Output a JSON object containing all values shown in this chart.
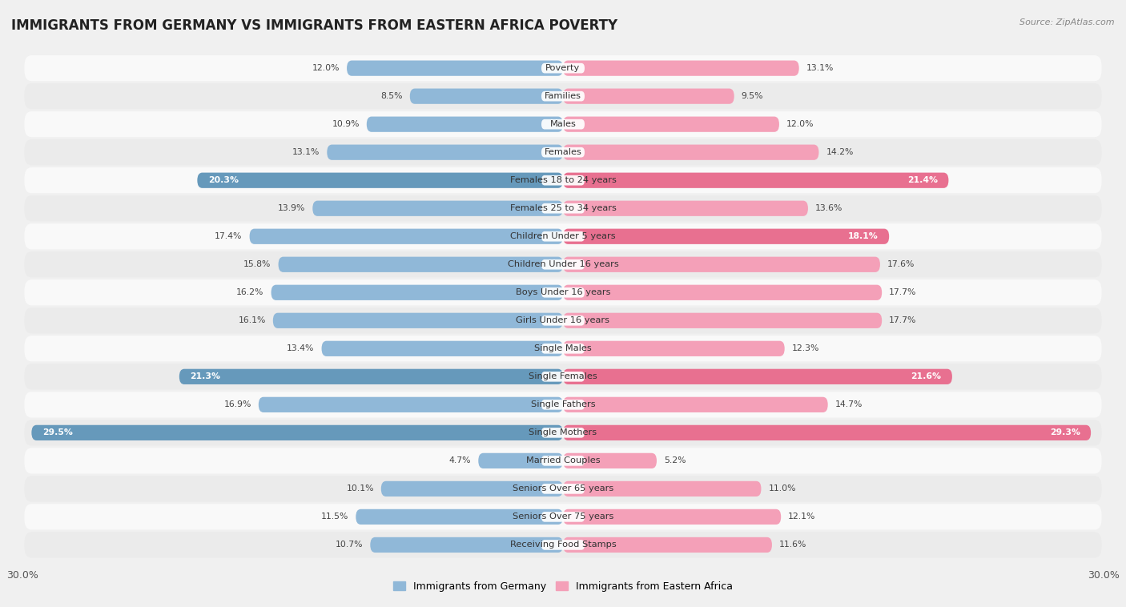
{
  "title": "IMMIGRANTS FROM GERMANY VS IMMIGRANTS FROM EASTERN AFRICA POVERTY",
  "source": "Source: ZipAtlas.com",
  "categories": [
    "Poverty",
    "Families",
    "Males",
    "Females",
    "Females 18 to 24 years",
    "Females 25 to 34 years",
    "Children Under 5 years",
    "Children Under 16 years",
    "Boys Under 16 years",
    "Girls Under 16 years",
    "Single Males",
    "Single Females",
    "Single Fathers",
    "Single Mothers",
    "Married Couples",
    "Seniors Over 65 years",
    "Seniors Over 75 years",
    "Receiving Food Stamps"
  ],
  "germany_values": [
    12.0,
    8.5,
    10.9,
    13.1,
    20.3,
    13.9,
    17.4,
    15.8,
    16.2,
    16.1,
    13.4,
    21.3,
    16.9,
    29.5,
    4.7,
    10.1,
    11.5,
    10.7
  ],
  "eastern_africa_values": [
    13.1,
    9.5,
    12.0,
    14.2,
    21.4,
    13.6,
    18.1,
    17.6,
    17.7,
    17.7,
    12.3,
    21.6,
    14.7,
    29.3,
    5.2,
    11.0,
    12.1,
    11.6
  ],
  "germany_color_normal": "#90b8d8",
  "germany_color_highlight": "#6699bb",
  "eastern_africa_color_normal": "#f4a0b8",
  "eastern_africa_color_highlight": "#e87090",
  "highlight_threshold": 18.0,
  "bar_height": 0.55,
  "background_color": "#f0f0f0",
  "row_color_odd": "#f9f9f9",
  "row_color_even": "#ebebeb",
  "xlim": 30.0,
  "legend_germany": "Immigrants from Germany",
  "legend_eastern_africa": "Immigrants from Eastern Africa",
  "title_fontsize": 12,
  "label_fontsize": 8.2,
  "value_fontsize": 7.8
}
